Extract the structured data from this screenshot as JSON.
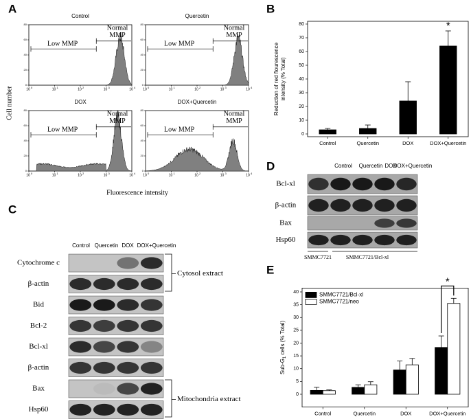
{
  "panel_labels": [
    "A",
    "B",
    "C",
    "D",
    "E"
  ],
  "panel_a": {
    "titles": [
      "Control",
      "Quercetin",
      "DOX",
      "DOX+Quercetin"
    ],
    "low_label": "Low MMP",
    "normal_label": [
      "Normal",
      "MMP"
    ],
    "ylabel": "Cell number",
    "xlabel": "Fluorescence intensity",
    "x_tick_base": "10",
    "x_tick_exponents": [
      "0",
      "1",
      "2",
      "3",
      "4"
    ],
    "ylim": [
      0,
      80
    ],
    "yticks": [
      0,
      20,
      40,
      60,
      80
    ]
  },
  "chart_data": [
    {
      "type": "bar",
      "ylabel": "Reduction of red flourescence intensity (% Total)",
      "categories": [
        "Control",
        "Quercetin",
        "DOX",
        "DOX+Quercetin"
      ],
      "values": [
        3,
        4,
        24,
        64
      ],
      "errors": [
        1,
        2.5,
        14,
        11
      ],
      "color": "#000000",
      "ylim": [
        -2,
        82
      ],
      "yticks": [
        0,
        10,
        20,
        30,
        40,
        50,
        60,
        70,
        80
      ],
      "annotation": "*"
    },
    {
      "type": "bar",
      "ylabel": {
        "main": "Sub-G",
        "subscript": "1",
        "rest": " cells (% Total)"
      },
      "categories": [
        "Control",
        "Quercetin",
        "DOX",
        "DOX+Quercetin"
      ],
      "series": [
        {
          "name": "SMMC7721/Bcl-xl",
          "color": "#000000",
          "values": [
            1.5,
            2.7,
            9.5,
            18.3
          ],
          "errors": [
            1.2,
            1,
            3.5,
            4.5
          ]
        },
        {
          "name": "SMMC7721/neo",
          "color": "#ffffff",
          "values": [
            1.4,
            3.7,
            11.5,
            35.5
          ],
          "errors": [
            0.3,
            1.2,
            2.5,
            2
          ]
        }
      ],
      "legend": "upper left",
      "ylim": [
        -5,
        41.5
      ],
      "yticks": [
        0,
        5,
        10,
        15,
        20,
        25,
        30,
        35,
        40
      ],
      "annotation": "*"
    }
  ],
  "panel_c": {
    "lanes": [
      "Control",
      "Quercetin",
      "DOX",
      "DOX+Quercetin"
    ],
    "rows": [
      "Cytochrome c",
      "β-actin",
      "Bid",
      "Bcl-2",
      "Bcl-xl",
      "β-actin",
      "Bax",
      "Hsp60"
    ],
    "groups": [
      "Cytosol extract",
      "Mitochondria extract"
    ]
  },
  "panel_d": {
    "lanes": [
      "Control",
      "Quercetin",
      "DOX",
      "DOX+Quercetin"
    ],
    "rows": [
      "Bcl-xl",
      "β-actin",
      "Bax",
      "Hsp60"
    ],
    "cell_lines": [
      "SMMC7721",
      "SMMC7721/Bcl-xl"
    ]
  }
}
